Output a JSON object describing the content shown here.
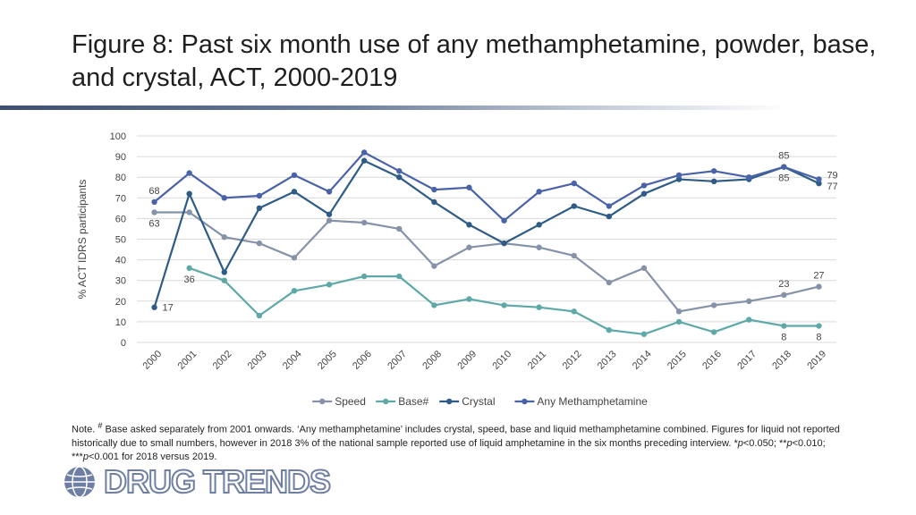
{
  "slide": {
    "title": "Figure 8: Past six month use of any methamphetamine, powder, base, and crystal, ACT, 2000-2019",
    "note_parts": [
      "Note. ",
      "#",
      " Base asked separately from 2001 onwards. ‘Any methamphetamine’ includes crystal, speed, base and liquid methamphetamine combined. Figures for liquid not reported historically due to small numbers, however in 2018 3% of the national sample reported use of liquid amphetamine in the six months preceding interview. *",
      "p",
      "<0.050; **",
      "p",
      "<0.010; ***",
      "p",
      "<0.001 for 2018 versus 2019."
    ],
    "logo_text": "DRUG TRENDS"
  },
  "chart_data": {
    "type": "line",
    "title": "",
    "xlabel": "",
    "ylabel": "% ACT IDRS participants",
    "ylim": [
      0,
      100
    ],
    "yticks": [
      0,
      10,
      20,
      30,
      40,
      50,
      60,
      70,
      80,
      90,
      100
    ],
    "grid": true,
    "legend_position": "bottom",
    "categories": [
      "2000",
      "2001",
      "2002",
      "2003",
      "2004",
      "2005",
      "2006",
      "2007",
      "2008",
      "2009",
      "2010",
      "2011",
      "2012",
      "2013",
      "2014",
      "2015",
      "2016",
      "2017",
      "2018",
      "2019"
    ],
    "series": [
      {
        "name": "Speed",
        "color": "#8592a8",
        "values": [
          63,
          63,
          51,
          48,
          41,
          59,
          58,
          55,
          37,
          46,
          48,
          46,
          42,
          29,
          36,
          15,
          18,
          20,
          23,
          27
        ]
      },
      {
        "name": "Base#",
        "color": "#5ea8a8",
        "values": [
          null,
          36,
          30,
          13,
          25,
          28,
          32,
          32,
          18,
          21,
          18,
          17,
          15,
          6,
          4,
          10,
          5,
          11,
          8,
          8
        ]
      },
      {
        "name": "Crystal",
        "color": "#2e5c86",
        "values": [
          17,
          72,
          34,
          65,
          73,
          62,
          88,
          80,
          68,
          57,
          48,
          57,
          66,
          61,
          72,
          79,
          78,
          79,
          85,
          77
        ]
      },
      {
        "name": "Any Methamphetamine",
        "color": "#4a63a8",
        "values": [
          68,
          82,
          70,
          71,
          81,
          73,
          92,
          83,
          74,
          75,
          59,
          73,
          77,
          66,
          76,
          81,
          83,
          80,
          85,
          79
        ]
      }
    ],
    "data_labels": [
      {
        "series": "Any Methamphetamine",
        "category": "2000",
        "text": "68",
        "pos": "above"
      },
      {
        "series": "Speed",
        "category": "2000",
        "text": "63",
        "pos": "below"
      },
      {
        "series": "Base#",
        "category": "2001",
        "text": "36",
        "pos": "below"
      },
      {
        "series": "Crystal",
        "category": "2000",
        "text": "17",
        "pos": "right"
      },
      {
        "series": "Any Methamphetamine",
        "category": "2018",
        "text": "85",
        "pos": "above"
      },
      {
        "series": "Crystal",
        "category": "2018",
        "text": "85",
        "pos": "below"
      },
      {
        "series": "Any Methamphetamine",
        "category": "2019",
        "text": "79",
        "pos": "right-up"
      },
      {
        "series": "Crystal",
        "category": "2019",
        "text": "77",
        "pos": "right-down"
      },
      {
        "series": "Speed",
        "category": "2018",
        "text": "23",
        "pos": "above"
      },
      {
        "series": "Speed",
        "category": "2019",
        "text": "27",
        "pos": "above"
      },
      {
        "series": "Base#",
        "category": "2018",
        "text": "8",
        "pos": "below"
      },
      {
        "series": "Base#",
        "category": "2019",
        "text": "8",
        "pos": "below"
      }
    ]
  }
}
